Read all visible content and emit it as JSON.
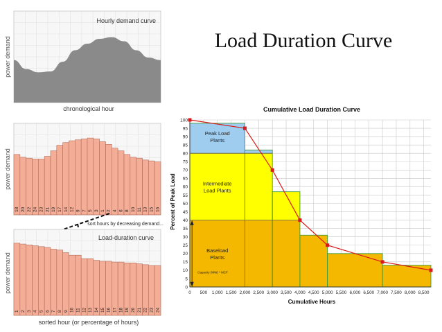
{
  "slide": {
    "title": "Load Duration Curve"
  },
  "colors": {
    "hourly_fill": "#8a8a8a",
    "bar_fill": "#f4ad96",
    "bar_stroke": "#b06c58",
    "peak": "#9ecdf0",
    "intermediate": "#ffff00",
    "base": "#f5b800",
    "curve": "#d91a1a",
    "grid": "#c8c8c8"
  },
  "chart_data": [
    {
      "type": "area",
      "title": "Hourly demand curve",
      "xlabel": "chronological hour",
      "ylabel": "power demand",
      "x": [
        0,
        1,
        2,
        3,
        4,
        5,
        6,
        7,
        8,
        9,
        10,
        11,
        12
      ],
      "values": [
        0.52,
        0.41,
        0.37,
        0.38,
        0.5,
        0.64,
        0.72,
        0.78,
        0.8,
        0.75,
        0.64,
        0.55,
        0.52
      ],
      "ylim": [
        0,
        1
      ]
    },
    {
      "type": "bar",
      "xlabel": "",
      "ylabel": "power demand",
      "categories": [
        "18",
        "20",
        "22",
        "24",
        "23",
        "21",
        "19",
        "17",
        "14",
        "12",
        "9",
        "7",
        "5",
        "3",
        "1",
        "2",
        "4",
        "6",
        "8",
        "10",
        "11",
        "13",
        "15",
        "16"
      ],
      "values": [
        0.66,
        0.63,
        0.62,
        0.61,
        0.61,
        0.64,
        0.7,
        0.76,
        0.79,
        0.81,
        0.82,
        0.83,
        0.84,
        0.83,
        0.8,
        0.77,
        0.73,
        0.7,
        0.66,
        0.63,
        0.62,
        0.6,
        0.59,
        0.58
      ],
      "annotation": "sort hours by decreasing demand...",
      "ylim": [
        0,
        1
      ]
    },
    {
      "type": "bar",
      "title": "Load-duration curve",
      "xlabel": "sorted hour (or percentage of hours)",
      "ylabel": "power demand",
      "categories": [
        "1",
        "2",
        "3",
        "4",
        "5",
        "6",
        "7",
        "8",
        "9",
        "10",
        "11",
        "12",
        "13",
        "14",
        "15",
        "16",
        "17",
        "18",
        "19",
        "20",
        "21",
        "22",
        "23",
        "24"
      ],
      "values": [
        0.84,
        0.83,
        0.82,
        0.81,
        0.8,
        0.79,
        0.77,
        0.76,
        0.73,
        0.7,
        0.7,
        0.66,
        0.66,
        0.64,
        0.63,
        0.63,
        0.62,
        0.62,
        0.61,
        0.61,
        0.6,
        0.59,
        0.58,
        0.58
      ],
      "ylim": [
        0,
        1
      ]
    },
    {
      "type": "bar",
      "title": "Cumulative Load Duration Curve",
      "xlabel": "Cumulative Hours",
      "ylabel": "Percent of Peak Load",
      "xlim": [
        0,
        8760
      ],
      "ylim": [
        0,
        100
      ],
      "x_ticks": [
        "0",
        "500",
        "1,000",
        "1,500",
        "2,000",
        "2,500",
        "3,000",
        "3,500",
        "4,000",
        "4,500",
        "5,000",
        "5,500",
        "6,000",
        "6,500",
        "7,000",
        "7,500",
        "8,000",
        "8,500"
      ],
      "y_ticks": [
        "0",
        "5",
        "10",
        "15",
        "20",
        "25",
        "30",
        "35",
        "40",
        "45",
        "50",
        "55",
        "60",
        "65",
        "70",
        "75",
        "80",
        "85",
        "90",
        "95",
        "100"
      ],
      "steps": [
        {
          "x0": 0,
          "x1": 2000,
          "y": 98
        },
        {
          "x0": 2000,
          "x1": 3000,
          "y": 82
        },
        {
          "x0": 3000,
          "x1": 4000,
          "y": 57
        },
        {
          "x0": 4000,
          "x1": 5000,
          "y": 31
        },
        {
          "x0": 5000,
          "x1": 7000,
          "y": 20
        },
        {
          "x0": 7000,
          "x1": 8760,
          "y": 13
        }
      ],
      "series": [
        {
          "name": "Load curve",
          "x": [
            0,
            2000,
            3000,
            4000,
            5000,
            7000,
            8760
          ],
          "y": [
            100,
            95,
            70,
            40,
            25,
            15,
            10
          ]
        }
      ],
      "bands": [
        {
          "name": "Peak Load Plants",
          "line1": "Peak Load",
          "line2": "Plants",
          "y0": 80,
          "y1": 100
        },
        {
          "name": "Intermediate Load Plants",
          "line1": "Intermediate",
          "line2": "Load Plants",
          "y0": 40,
          "y1": 80
        },
        {
          "name": "Baseload Plants",
          "line1": "Baseload",
          "line2": "Plants",
          "y0": 0,
          "y1": 40
        }
      ],
      "capacity_note": "Capacity (MW) * MCF"
    }
  ]
}
